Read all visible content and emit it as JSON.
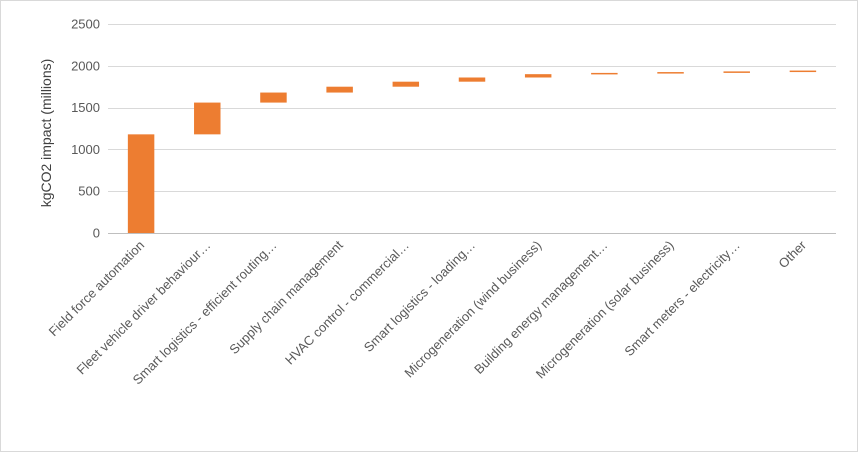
{
  "chart_data": {
    "type": "bar",
    "subtype": "waterfall",
    "title": "",
    "xlabel": "",
    "ylabel": "kgCO2 impact (millions)",
    "ylim": [
      0,
      2500
    ],
    "yticks": [
      0,
      500,
      1000,
      1500,
      2000,
      2500
    ],
    "grid": true,
    "legend": "none",
    "bar_color": "#ED7D31",
    "categories": [
      "Field force automation",
      "Fleet vehicle driver behaviour…",
      "Smart logistics - efficient routing…",
      "Supply chain management",
      "HVAC control - commercial…",
      "Smart logistics - loading…",
      "Microgeneration (wind business)",
      "Building energy management…",
      "Microgeneration (solar business)",
      "Smart meters - electricity…",
      "Other"
    ],
    "values": [
      1180,
      380,
      120,
      70,
      60,
      50,
      40,
      15,
      10,
      8,
      10
    ],
    "cumulative_end": [
      1180,
      1560,
      1680,
      1750,
      1810,
      1860,
      1900,
      1915,
      1925,
      1933,
      1943
    ]
  }
}
